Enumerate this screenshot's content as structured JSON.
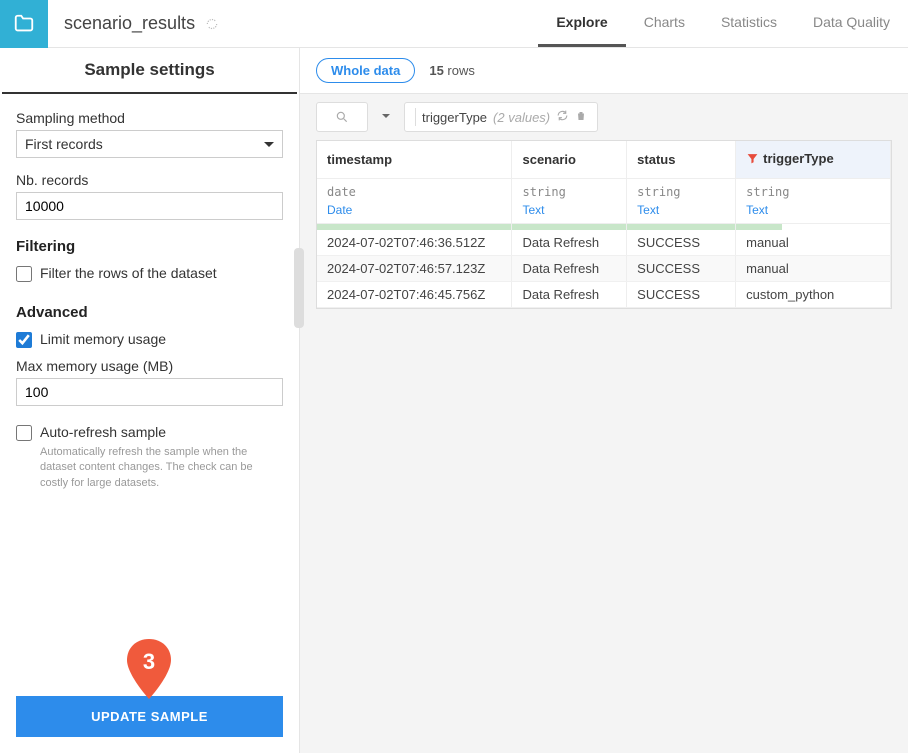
{
  "header": {
    "title": "scenario_results",
    "tabs": [
      {
        "label": "Explore",
        "active": true
      },
      {
        "label": "Charts",
        "active": false
      },
      {
        "label": "Statistics",
        "active": false
      },
      {
        "label": "Data Quality",
        "active": false
      }
    ]
  },
  "sidebar": {
    "title": "Sample settings",
    "samplingMethodLabel": "Sampling method",
    "samplingMethodValue": "First records",
    "nbRecordsLabel": "Nb. records",
    "nbRecordsValue": "10000",
    "filteringHeading": "Filtering",
    "filterRowsLabel": "Filter the rows of the dataset",
    "filterRowsChecked": false,
    "advancedHeading": "Advanced",
    "limitMemoryLabel": "Limit memory usage",
    "limitMemoryChecked": true,
    "maxMemoryLabel": "Max memory usage (MB)",
    "maxMemoryValue": "100",
    "autoRefreshLabel": "Auto-refresh sample",
    "autoRefreshChecked": false,
    "autoRefreshHelp": "Automatically refresh the sample when the dataset content changes. The check can be costly for large datasets.",
    "updateButton": "UPDATE SAMPLE",
    "markerNumber": "3"
  },
  "content": {
    "wholeData": "Whole data",
    "rowCountNum": "15",
    "rowCountSuffix": " rows",
    "filter": {
      "column": "triggerType",
      "count": "(2 values)"
    },
    "columns": [
      {
        "name": "timestamp",
        "storage": "date",
        "type": "Date",
        "highlighted": false,
        "width": "34%"
      },
      {
        "name": "scenario",
        "storage": "string",
        "type": "Text",
        "highlighted": false,
        "width": "20%"
      },
      {
        "name": "status",
        "storage": "string",
        "type": "Text",
        "highlighted": false,
        "width": "19%"
      },
      {
        "name": "triggerType",
        "storage": "string",
        "type": "Text",
        "highlighted": true,
        "width": "27%"
      }
    ],
    "rows": [
      [
        "2024-07-02T07:46:36.512Z",
        "Data Refresh",
        "SUCCESS",
        "manual"
      ],
      [
        "2024-07-02T07:46:57.123Z",
        "Data Refresh",
        "SUCCESS",
        "manual"
      ],
      [
        "2024-07-02T07:46:45.756Z",
        "Data Refresh",
        "SUCCESS",
        "custom_python"
      ]
    ]
  },
  "colors": {
    "accent": "#2d8ceb",
    "folderBg": "#31b0d5",
    "marker": "#f05a3c",
    "funnel": "#e74c3c",
    "greenbar": "#c8e6c9",
    "highlightCol": "#eef3fb"
  }
}
